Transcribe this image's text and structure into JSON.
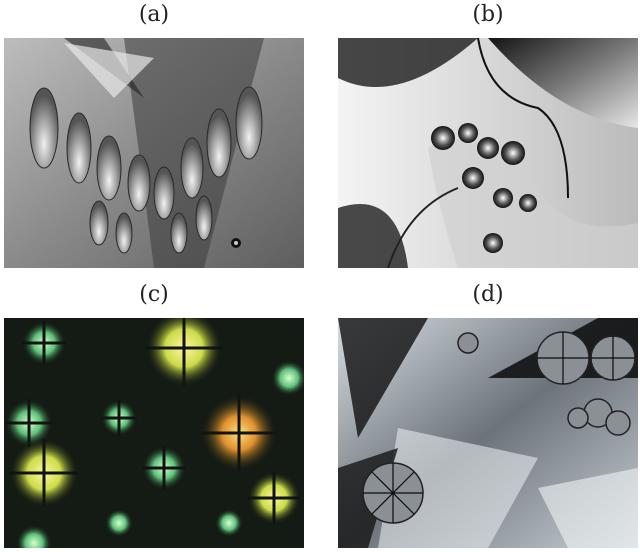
{
  "figure": {
    "panels": [
      {
        "label": "(a)",
        "tone": "grayscale"
      },
      {
        "label": "(b)",
        "tone": "grayscale"
      },
      {
        "label": "(c)",
        "tone": "color"
      },
      {
        "label": "(d)",
        "tone": "grayscale"
      }
    ]
  }
}
